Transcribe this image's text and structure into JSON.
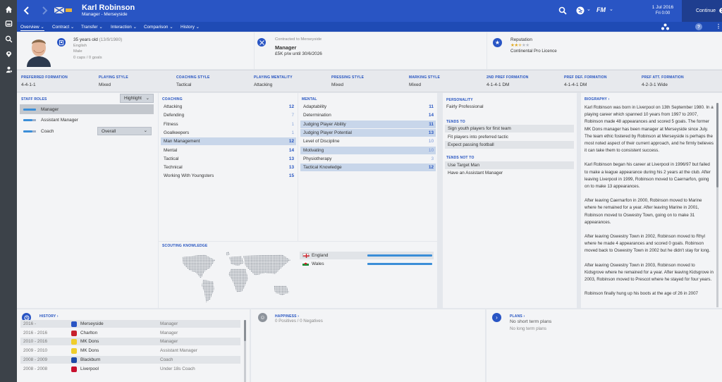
{
  "colors": {
    "primary": "#2955c4",
    "sidebar": "#3c4249",
    "value_blue": "#2352c0",
    "bar_blue": "#3b8ed8",
    "highlight_row": "#c8d6ea"
  },
  "sidebar_icons": [
    "home-icon",
    "inbox-icon",
    "search-icon",
    "scout-icon",
    "staff-icon"
  ],
  "header": {
    "name": "Karl Robinson",
    "subtitle": "Manager - Merseyside",
    "date": "1 Jul 2016",
    "day": "Fri 0:00",
    "fm_logo": "FM",
    "continue_label": "Continue"
  },
  "tabs": [
    {
      "label": "Overview"
    },
    {
      "label": "Contract"
    },
    {
      "label": "Transfer"
    },
    {
      "label": "Interaction"
    },
    {
      "label": "Comparison"
    },
    {
      "label": "History"
    }
  ],
  "profile": {
    "age": "35 years old",
    "dob": "(13/9/1980)",
    "nationality": "English",
    "gender": "Male",
    "caps": "0 caps / 0 goals"
  },
  "contract": {
    "label": "Contracted to Merseyside",
    "role": "Manager",
    "wage": "£5K p/w until 30/6/2026"
  },
  "reputation": {
    "label": "Reputation",
    "level": "Continental Pro Licence",
    "stars_filled": 2.5,
    "stars_total": 5
  },
  "attributes_strip": [
    {
      "label": "PREFERRED FORMATION",
      "value": "4-4-1-1"
    },
    {
      "label": "PLAYING STYLE",
      "value": "Mixed"
    },
    {
      "label": "COACHING STYLE",
      "value": "Tactical"
    },
    {
      "label": "PLAYING MENTALITY",
      "value": "Attacking"
    },
    {
      "label": "PRESSING STYLE",
      "value": "Mixed"
    },
    {
      "label": "MARKING STYLE",
      "value": "Mixed"
    },
    {
      "label": "2ND PREF FORMATION",
      "value": "4-1-4-1 DM"
    },
    {
      "label": "PREF DEF. FORMATION",
      "value": "4-1-4-1 DM"
    },
    {
      "label": "PREF ATT. FORMATION",
      "value": "4-2-3-1 Wide"
    }
  ],
  "staff_roles": {
    "title": "STAFF ROLES",
    "highlight_label": "Highlight",
    "roles": [
      {
        "label": "Manager",
        "level": 1.0
      },
      {
        "label": "Assistant Manager",
        "level": 0.6
      },
      {
        "label": "Coach",
        "level": 0.6
      }
    ],
    "coach_select": "Overall"
  },
  "coaching": {
    "title": "COACHING",
    "items": [
      {
        "label": "Attacking",
        "value": "12",
        "hl": false
      },
      {
        "label": "Defending",
        "value": "7",
        "hl": false
      },
      {
        "label": "Fitness",
        "value": "1",
        "hl": false
      },
      {
        "label": "Goalkeepers",
        "value": "1",
        "hl": false
      },
      {
        "label": "Man Management",
        "value": "12",
        "hl": true
      },
      {
        "label": "Mental",
        "value": "14",
        "hl": false
      },
      {
        "label": "Tactical",
        "value": "13",
        "hl": false
      },
      {
        "label": "Technical",
        "value": "13",
        "hl": false
      },
      {
        "label": "Working With Youngsters",
        "value": "15",
        "hl": false
      }
    ]
  },
  "mental": {
    "title": "MENTAL",
    "items": [
      {
        "label": "Adaptability",
        "value": "11",
        "hl": false
      },
      {
        "label": "Determination",
        "value": "14",
        "hl": false
      },
      {
        "label": "Judging Player Ability",
        "value": "11",
        "hl": true
      },
      {
        "label": "Judging Player Potential",
        "value": "13",
        "hl": true
      },
      {
        "label": "Level of Discipline",
        "value": "10",
        "hl": false
      },
      {
        "label": "Motivating",
        "value": "10",
        "hl": true
      },
      {
        "label": "Physiotherapy",
        "value": "3",
        "hl": false
      },
      {
        "label": "Tactical Knowledge",
        "value": "12",
        "hl": true
      }
    ]
  },
  "personality": {
    "title": "PERSONALITY",
    "value": "Fairly Professional",
    "tends_to_title": "TENDS TO",
    "tends_to": [
      "Sign youth players for first team",
      "Fit players into preferred tactic",
      "Expect passing football"
    ],
    "tends_not_title": "TENDS NOT TO",
    "tends_not": [
      "Use Target Man",
      "Have an Assistant Manager"
    ]
  },
  "biography": {
    "title": "BIOGRAPHY",
    "paragraphs": [
      "Karl Robinson was born in Liverpool on 13th September 1980. In a playing career which spanned 10 years from 1997 to 2007, Robinson made 48 appearances and scored 5 goals. The former MK Dons manager has been manager at Merseyside since July. The team ethic fostered by Robinson at Merseyside is perhaps the most noted aspect of their current approach, and he firmly believes it can take them to consistent success.",
      "Karl Robinson began his career at Liverpool in 1996/97 but failed to make a league appearance during his 2 years at the club. After leaving Liverpool in 1999, Robinson moved to Caernarfon, going on to make 13 appearances.",
      "After leaving Caernarfon in 2000, Robinson moved to Marine where he remained for a year. After leaving Marine in 2001, Robinson moved to Oswestry Town, going on to make 31 appearances.",
      "After leaving Oswestry Town in 2002, Robinson moved to Rhyl where he made 4 appearances and scored 0 goals. Robinson moved back to Oswestry Town in 2002 but he didn't stay for long.",
      "After leaving Oswestry Town in 2003, Robinson moved to Kidsgrove where he remained for a year. After leaving Kidsgrove in 2003, Robinson moved to Prescot where he stayed for four years.",
      "Robinson finally hung up his boots at the age of 26 in 2007"
    ]
  },
  "scouting": {
    "title": "SCOUTING KNOWLEDGE",
    "countries": [
      {
        "name": "England",
        "knowledge": 1.0
      },
      {
        "name": "Wales",
        "knowledge": 1.0
      }
    ]
  },
  "history": {
    "title": "HISTORY",
    "rows": [
      {
        "years": "2016 -",
        "club": "Merseyside",
        "role": "Manager"
      },
      {
        "years": "2016 - 2016",
        "club": "Charlton",
        "role": "Manager"
      },
      {
        "years": "2010 - 2016",
        "club": "MK Dons",
        "role": "Manager"
      },
      {
        "years": "2009 - 2010",
        "club": "MK Dons",
        "role": "Assistant Manager"
      },
      {
        "years": "2008 - 2009",
        "club": "Blackburn",
        "role": "Coach"
      },
      {
        "years": "2008 - 2008",
        "club": "Liverpool",
        "role": "Under 18s Coach"
      }
    ]
  },
  "happiness": {
    "title": "HAPPINESS",
    "positives": "0 Positives",
    "sep": "/",
    "negatives": "0 Negatives"
  },
  "plans": {
    "title": "PLANS",
    "short": "No short term plans",
    "long": "No long term plans"
  }
}
